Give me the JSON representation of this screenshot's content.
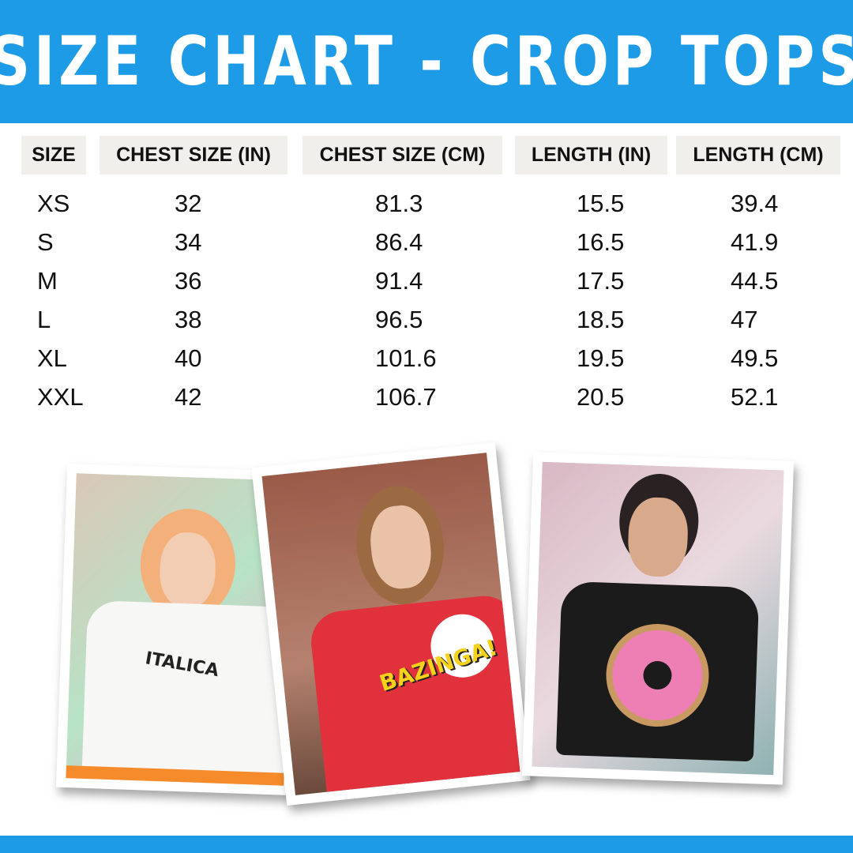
{
  "title": "SIZE CHART - CROP TOPS",
  "columns": [
    "SIZE",
    "CHEST SIZE (IN)",
    "CHEST SIZE (CM)",
    "LENGTH (IN)",
    "LENGTH (CM)"
  ],
  "rows": [
    [
      "XS",
      "32",
      "81.3",
      "15.5",
      "39.4"
    ],
    [
      "S",
      "34",
      "86.4",
      "16.5",
      "41.9"
    ],
    [
      "M",
      "36",
      "91.4",
      "17.5",
      "44.5"
    ],
    [
      "L",
      "38",
      "96.5",
      "18.5",
      "47"
    ],
    [
      "XL",
      "40",
      "101.6",
      "19.5",
      "49.5"
    ],
    [
      "XXL",
      "42",
      "106.7",
      "20.5",
      "52.1"
    ]
  ],
  "photos": [
    {
      "shirt_color": "#f7f7f5",
      "print_text": "ITALICA",
      "bg": "#d9c7b8"
    },
    {
      "shirt_color": "#e0313c",
      "print_text": "BAZINGA!",
      "bg": "#9a5b48"
    },
    {
      "shirt_color": "#1b1b1b",
      "print_text": "",
      "bg": "#d8b8c4"
    }
  ],
  "colors": {
    "brand_blue": "#1e9be6",
    "header_cell": "#f0efeb"
  }
}
